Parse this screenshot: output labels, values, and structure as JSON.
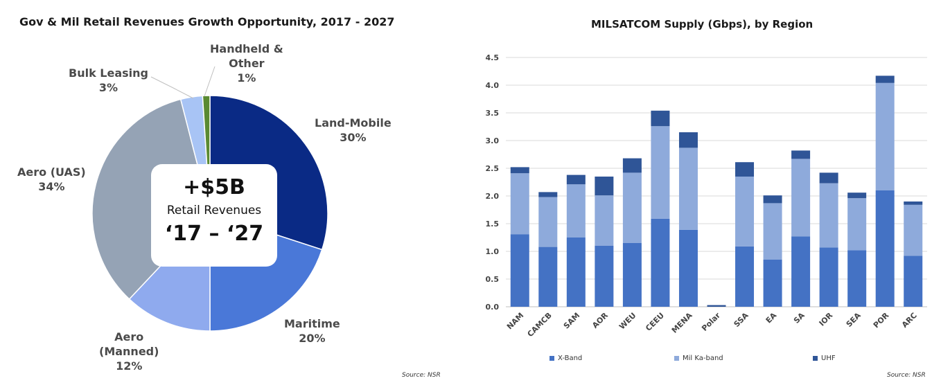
{
  "left_chart": {
    "title": "Gov & Mil Retail Revenues Growth Opportunity, 2017 - 2027",
    "center": {
      "main": "+$5B",
      "sub": "Retail Revenues",
      "years": "‘17 – ‘27"
    },
    "source": "Source: NSR",
    "labels": {
      "land_mobile": {
        "name": "Land-Mobile",
        "pct": "30%"
      },
      "maritime": {
        "name": "Maritime",
        "pct": "20%"
      },
      "aero_manned_1": "Aero",
      "aero_manned_2": "(Manned)",
      "aero_manned_pct": "12%",
      "aero_uas": {
        "name": "Aero (UAS)",
        "pct": "34%"
      },
      "bulk_leasing": {
        "name": "Bulk Leasing",
        "pct": "3%"
      },
      "handheld_1": "Handheld &",
      "handheld_2": "Other",
      "handheld_pct": "1%"
    }
  },
  "right_chart": {
    "title": "MILSATCOM Supply (Gbps), by Region",
    "source": "Source: NSR",
    "legend": [
      "X-Band",
      "Mil Ka-band",
      "UHF"
    ]
  },
  "chart_data": [
    {
      "type": "pie",
      "title": "Gov & Mil Retail Revenues Growth Opportunity, 2017 - 2027",
      "categories": [
        "Land-Mobile",
        "Maritime",
        "Aero (Manned)",
        "Aero (UAS)",
        "Bulk Leasing",
        "Handheld & Other"
      ],
      "values": [
        30,
        20,
        12,
        34,
        3,
        1
      ],
      "colors": [
        "#0a2a85",
        "#4a78d8",
        "#8faaee",
        "#95a3b5",
        "#a8c4f5",
        "#5a8a32"
      ]
    },
    {
      "type": "bar",
      "stacked": true,
      "title": "MILSATCOM Supply (Gbps), by Region",
      "categories": [
        "NAM",
        "CAMCB",
        "SAM",
        "AOR",
        "WEU",
        "CEEU",
        "MENA",
        "Polar",
        "SSA",
        "EA",
        "SA",
        "IOR",
        "SEA",
        "POR",
        "ARC"
      ],
      "series": [
        {
          "name": "X-Band",
          "color": "#4472c4",
          "values": [
            1.31,
            1.08,
            1.25,
            1.1,
            1.15,
            1.59,
            1.39,
            0.0,
            1.09,
            0.85,
            1.27,
            1.07,
            1.02,
            2.1,
            0.92
          ]
        },
        {
          "name": "Mil Ka-band",
          "color": "#8eaadb",
          "values": [
            1.1,
            0.9,
            0.96,
            0.91,
            1.27,
            1.67,
            1.48,
            0.0,
            1.26,
            1.02,
            1.4,
            1.16,
            0.94,
            1.94,
            0.92
          ]
        },
        {
          "name": "UHF",
          "color": "#2f5597",
          "values": [
            0.11,
            0.09,
            0.17,
            0.34,
            0.26,
            0.28,
            0.28,
            0.03,
            0.26,
            0.14,
            0.15,
            0.19,
            0.1,
            0.13,
            0.06
          ]
        }
      ],
      "ylim": [
        0,
        4.5
      ],
      "yticks": [
        "0.0",
        "0.5",
        "1.0",
        "1.5",
        "2.0",
        "2.5",
        "3.0",
        "3.5",
        "4.0",
        "4.5"
      ],
      "grid": true,
      "legend_position": "bottom"
    }
  ]
}
